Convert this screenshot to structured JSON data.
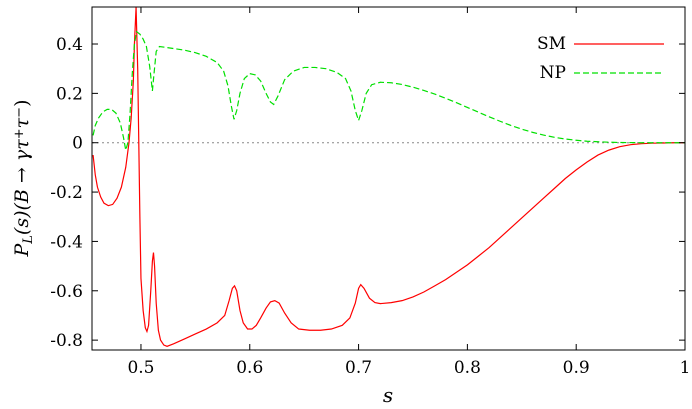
{
  "chart_data": {
    "type": "line",
    "xlabel": "s",
    "ylabel": "P_L(s)(B → γ τ+ τ−)",
    "ylabel_parts": {
      "p": "P",
      "sub": "L",
      "mid": "(s)(B → γτ",
      "sup1": "+",
      "mid2": "τ",
      "sup2": "−",
      "end": ")"
    },
    "xlim": [
      0.455,
      1.0
    ],
    "ylim": [
      -0.84,
      0.55
    ],
    "x_ticks": [
      0.5,
      0.6,
      0.7,
      0.8,
      0.9,
      1.0
    ],
    "x_tick_labels": [
      "0.5",
      "0.6",
      "0.7",
      "0.8",
      "0.9",
      "1"
    ],
    "y_ticks": [
      -0.8,
      -0.6,
      -0.4,
      -0.2,
      0,
      0.2,
      0.4
    ],
    "y_tick_labels": [
      "-0.8",
      "-0.6",
      "-0.4",
      "-0.2",
      "0",
      "0.2",
      "0.4"
    ],
    "zero_line": true,
    "legend_position": "top-right",
    "series": [
      {
        "name": "SM",
        "color": "#ff0000",
        "style": "solid",
        "points": [
          [
            0.456,
            -0.05
          ],
          [
            0.458,
            -0.13
          ],
          [
            0.46,
            -0.18
          ],
          [
            0.463,
            -0.22
          ],
          [
            0.466,
            -0.245
          ],
          [
            0.47,
            -0.255
          ],
          [
            0.474,
            -0.25
          ],
          [
            0.478,
            -0.225
          ],
          [
            0.482,
            -0.18
          ],
          [
            0.486,
            -0.1
          ],
          [
            0.489,
            0.0
          ],
          [
            0.491,
            0.1
          ],
          [
            0.493,
            0.25
          ],
          [
            0.494,
            0.4
          ],
          [
            0.4955,
            0.55
          ],
          [
            0.497,
            0.3
          ],
          [
            0.498,
            0.0
          ],
          [
            0.499,
            -0.3
          ],
          [
            0.5,
            -0.55
          ],
          [
            0.502,
            -0.68
          ],
          [
            0.504,
            -0.75
          ],
          [
            0.5055,
            -0.765
          ],
          [
            0.507,
            -0.74
          ],
          [
            0.509,
            -0.6
          ],
          [
            0.5105,
            -0.48
          ],
          [
            0.5115,
            -0.445
          ],
          [
            0.5125,
            -0.5
          ],
          [
            0.514,
            -0.65
          ],
          [
            0.516,
            -0.76
          ],
          [
            0.518,
            -0.8
          ],
          [
            0.521,
            -0.82
          ],
          [
            0.524,
            -0.825
          ],
          [
            0.53,
            -0.815
          ],
          [
            0.54,
            -0.795
          ],
          [
            0.55,
            -0.775
          ],
          [
            0.56,
            -0.755
          ],
          [
            0.57,
            -0.73
          ],
          [
            0.577,
            -0.7
          ],
          [
            0.581,
            -0.64
          ],
          [
            0.584,
            -0.59
          ],
          [
            0.586,
            -0.58
          ],
          [
            0.588,
            -0.6
          ],
          [
            0.591,
            -0.68
          ],
          [
            0.594,
            -0.73
          ],
          [
            0.598,
            -0.755
          ],
          [
            0.602,
            -0.755
          ],
          [
            0.606,
            -0.74
          ],
          [
            0.61,
            -0.71
          ],
          [
            0.615,
            -0.67
          ],
          [
            0.619,
            -0.645
          ],
          [
            0.623,
            -0.64
          ],
          [
            0.627,
            -0.65
          ],
          [
            0.632,
            -0.69
          ],
          [
            0.638,
            -0.73
          ],
          [
            0.645,
            -0.755
          ],
          [
            0.655,
            -0.76
          ],
          [
            0.665,
            -0.76
          ],
          [
            0.675,
            -0.755
          ],
          [
            0.685,
            -0.74
          ],
          [
            0.692,
            -0.71
          ],
          [
            0.697,
            -0.65
          ],
          [
            0.7,
            -0.59
          ],
          [
            0.702,
            -0.575
          ],
          [
            0.705,
            -0.59
          ],
          [
            0.71,
            -0.63
          ],
          [
            0.715,
            -0.648
          ],
          [
            0.72,
            -0.652
          ],
          [
            0.73,
            -0.648
          ],
          [
            0.74,
            -0.64
          ],
          [
            0.75,
            -0.625
          ],
          [
            0.76,
            -0.605
          ],
          [
            0.77,
            -0.58
          ],
          [
            0.78,
            -0.555
          ],
          [
            0.79,
            -0.525
          ],
          [
            0.8,
            -0.495
          ],
          [
            0.81,
            -0.46
          ],
          [
            0.82,
            -0.425
          ],
          [
            0.83,
            -0.385
          ],
          [
            0.84,
            -0.345
          ],
          [
            0.85,
            -0.305
          ],
          [
            0.86,
            -0.265
          ],
          [
            0.87,
            -0.225
          ],
          [
            0.88,
            -0.185
          ],
          [
            0.89,
            -0.145
          ],
          [
            0.9,
            -0.11
          ],
          [
            0.91,
            -0.078
          ],
          [
            0.92,
            -0.05
          ],
          [
            0.93,
            -0.03
          ],
          [
            0.94,
            -0.016
          ],
          [
            0.95,
            -0.008
          ],
          [
            0.96,
            -0.004
          ],
          [
            0.97,
            -0.002
          ],
          [
            0.98,
            -0.001
          ],
          [
            0.99,
            0.0
          ],
          [
            1.0,
            0.0
          ]
        ]
      },
      {
        "name": "NP",
        "color": "#00e000",
        "style": "dashed",
        "points": [
          [
            0.456,
            0.03
          ],
          [
            0.458,
            0.07
          ],
          [
            0.461,
            0.1
          ],
          [
            0.465,
            0.125
          ],
          [
            0.469,
            0.135
          ],
          [
            0.473,
            0.135
          ],
          [
            0.477,
            0.12
          ],
          [
            0.481,
            0.08
          ],
          [
            0.484,
            0.02
          ],
          [
            0.486,
            -0.03
          ],
          [
            0.488,
            0.0
          ],
          [
            0.49,
            0.12
          ],
          [
            0.492,
            0.28
          ],
          [
            0.494,
            0.4
          ],
          [
            0.496,
            0.45
          ],
          [
            0.499,
            0.44
          ],
          [
            0.502,
            0.42
          ],
          [
            0.505,
            0.39
          ],
          [
            0.508,
            0.31
          ],
          [
            0.5105,
            0.21
          ],
          [
            0.512,
            0.28
          ],
          [
            0.514,
            0.37
          ],
          [
            0.517,
            0.39
          ],
          [
            0.525,
            0.385
          ],
          [
            0.54,
            0.375
          ],
          [
            0.55,
            0.365
          ],
          [
            0.56,
            0.35
          ],
          [
            0.57,
            0.325
          ],
          [
            0.576,
            0.29
          ],
          [
            0.58,
            0.23
          ],
          [
            0.583,
            0.15
          ],
          [
            0.5855,
            0.095
          ],
          [
            0.588,
            0.13
          ],
          [
            0.591,
            0.2
          ],
          [
            0.595,
            0.26
          ],
          [
            0.6,
            0.28
          ],
          [
            0.605,
            0.275
          ],
          [
            0.61,
            0.25
          ],
          [
            0.615,
            0.2
          ],
          [
            0.619,
            0.165
          ],
          [
            0.622,
            0.155
          ],
          [
            0.626,
            0.19
          ],
          [
            0.632,
            0.255
          ],
          [
            0.64,
            0.29
          ],
          [
            0.65,
            0.305
          ],
          [
            0.66,
            0.305
          ],
          [
            0.67,
            0.3
          ],
          [
            0.68,
            0.285
          ],
          [
            0.688,
            0.26
          ],
          [
            0.693,
            0.21
          ],
          [
            0.697,
            0.13
          ],
          [
            0.7,
            0.09
          ],
          [
            0.703,
            0.13
          ],
          [
            0.707,
            0.2
          ],
          [
            0.712,
            0.235
          ],
          [
            0.72,
            0.245
          ],
          [
            0.73,
            0.243
          ],
          [
            0.74,
            0.236
          ],
          [
            0.75,
            0.225
          ],
          [
            0.76,
            0.212
          ],
          [
            0.77,
            0.197
          ],
          [
            0.78,
            0.18
          ],
          [
            0.79,
            0.162
          ],
          [
            0.8,
            0.143
          ],
          [
            0.81,
            0.124
          ],
          [
            0.82,
            0.105
          ],
          [
            0.83,
            0.087
          ],
          [
            0.84,
            0.07
          ],
          [
            0.85,
            0.055
          ],
          [
            0.86,
            0.042
          ],
          [
            0.87,
            0.031
          ],
          [
            0.88,
            0.022
          ],
          [
            0.89,
            0.015
          ],
          [
            0.9,
            0.01
          ],
          [
            0.91,
            0.006
          ],
          [
            0.92,
            0.004
          ],
          [
            0.93,
            0.002
          ],
          [
            0.94,
            0.001
          ],
          [
            0.96,
            0.0
          ],
          [
            1.0,
            0.0
          ]
        ]
      }
    ]
  }
}
